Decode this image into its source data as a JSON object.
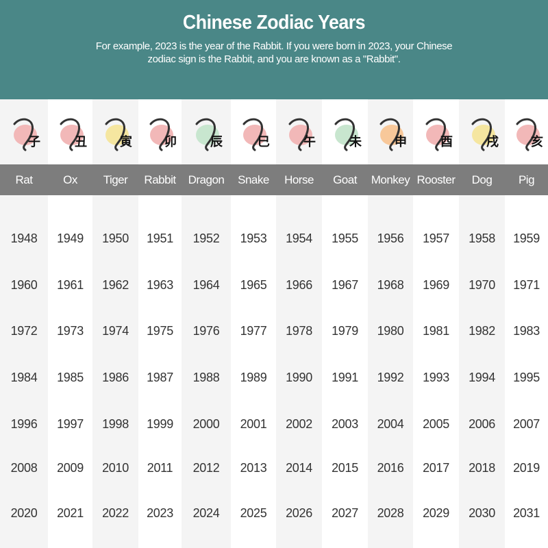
{
  "header": {
    "title": "Chinese Zodiac Years",
    "subtitle": "For example, 2023 is the year of the Rabbit. If you were born in 2023, your Chinese zodiac sign is the Rabbit, and you are known as a \"Rabbit\".",
    "background": "#4a8787"
  },
  "band_color": "#7d7d7d",
  "signs": [
    {
      "name": "Rat",
      "glyph": "子",
      "blob": "#f2b8b8",
      "years": [
        "1948",
        "1960",
        "1972",
        "1984",
        "1996",
        "2008",
        "2020"
      ]
    },
    {
      "name": "Ox",
      "glyph": "丑",
      "blob": "#f2b8b8",
      "years": [
        "1949",
        "1961",
        "1973",
        "1985",
        "1997",
        "2009",
        "2021"
      ]
    },
    {
      "name": "Tiger",
      "glyph": "寅",
      "blob": "#f5e6a0",
      "years": [
        "1950",
        "1962",
        "1974",
        "1986",
        "1998",
        "2010",
        "2022"
      ]
    },
    {
      "name": "Rabbit",
      "glyph": "卯",
      "blob": "#f2b8b8",
      "years": [
        "1951",
        "1963",
        "1975",
        "1987",
        "1999",
        "2011",
        "2023"
      ]
    },
    {
      "name": "Dragon",
      "glyph": "辰",
      "blob": "#c8e6cf",
      "years": [
        "1952",
        "1964",
        "1976",
        "1988",
        "2000",
        "2012",
        "2024"
      ]
    },
    {
      "name": "Snake",
      "glyph": "巳",
      "blob": "#f2b8b8",
      "years": [
        "1953",
        "1965",
        "1977",
        "1989",
        "2001",
        "2013",
        "2025"
      ]
    },
    {
      "name": "Horse",
      "glyph": "午",
      "blob": "#f2b8b8",
      "years": [
        "1954",
        "1966",
        "1978",
        "1990",
        "2002",
        "2014",
        "2026"
      ]
    },
    {
      "name": "Goat",
      "glyph": "未",
      "blob": "#c8e6cf",
      "years": [
        "1955",
        "1967",
        "1979",
        "1991",
        "2003",
        "2015",
        "2027"
      ]
    },
    {
      "name": "Monkey",
      "glyph": "申",
      "blob": "#f8c89a",
      "years": [
        "1956",
        "1968",
        "1980",
        "1992",
        "2004",
        "2016",
        "2028"
      ]
    },
    {
      "name": "Rooster",
      "glyph": "酉",
      "blob": "#f2b8b8",
      "years": [
        "1957",
        "1969",
        "1981",
        "1993",
        "2005",
        "2017",
        "2029"
      ]
    },
    {
      "name": "Dog",
      "glyph": "戌",
      "blob": "#f5e6a0",
      "years": [
        "1958",
        "1970",
        "1982",
        "1994",
        "2006",
        "2018",
        "2030"
      ]
    },
    {
      "name": "Pig",
      "glyph": "亥",
      "blob": "#f2b8b8",
      "years": [
        "1959",
        "1971",
        "1983",
        "1995",
        "2007",
        "2019",
        "2031"
      ]
    }
  ]
}
